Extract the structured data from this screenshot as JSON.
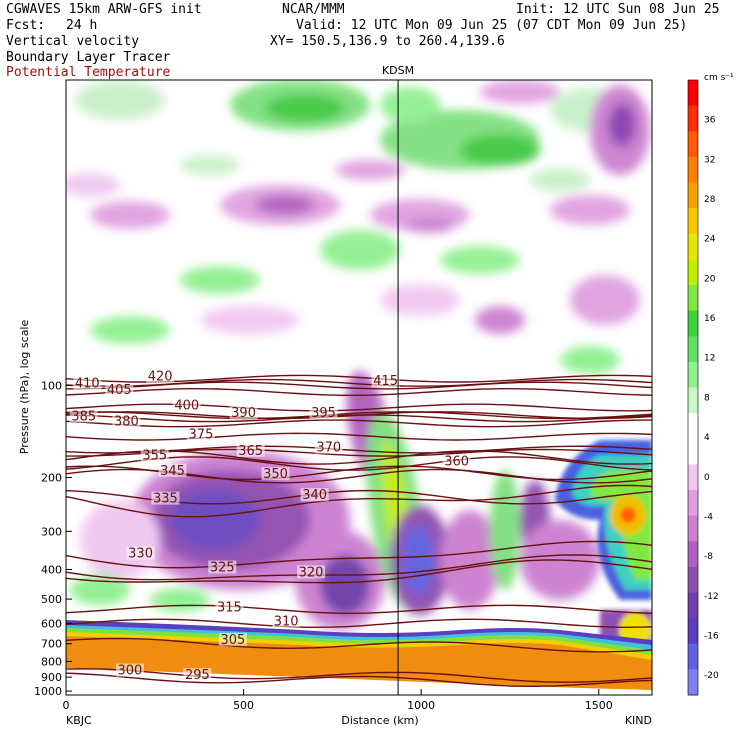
{
  "header": {
    "model": "CGWAVES 15km ARW-GFS init",
    "org": "NCAR/MMM",
    "init": "Init: 12 UTC Sun 08 Jun 25",
    "fcst_label": "Fcst:",
    "fcst_value": "24 h",
    "valid": "Valid: 12 UTC Mon 09 Jun 25 (07 CDT Mon 09 Jun 25)",
    "field1": "Vertical velocity",
    "field2": "Boundary Layer Tracer",
    "field3": "Potential Temperature",
    "xy": "XY= 150.5,136.9 to 260.4,139.6"
  },
  "colors": {
    "theta": "#6a1010",
    "field3_text": "#a01010",
    "terrain_orange": "#f08c10"
  },
  "chart_data": {
    "type": "heatmap",
    "xlabel": "Distance (km)",
    "ylabel": "Pressure (hPa), log scale",
    "x_range": [
      0,
      1650
    ],
    "x_ticks": [
      0,
      500,
      1000,
      1500
    ],
    "y_scale": "log",
    "y_range": [
      1030,
      10
    ],
    "y_ticks": [
      100,
      200,
      300,
      400,
      500,
      600,
      700,
      800,
      900,
      1000
    ],
    "left_station": "KBJC",
    "right_station": "KIND",
    "mid_station": "KDSM",
    "mid_station_x_km": 935,
    "colorbar": {
      "units": "cm s⁻¹",
      "labels": [
        36,
        32,
        28,
        24,
        20,
        16,
        12,
        8,
        4,
        0,
        -4,
        -8,
        -12,
        -16,
        -20
      ],
      "colors": [
        "#ff0000",
        "#ff2e00",
        "#ff5a00",
        "#ff8000",
        "#f5a000",
        "#f5c800",
        "#e6e600",
        "#c0f000",
        "#80e840",
        "#40d040",
        "#60e060",
        "#90f090",
        "#c8f8c8",
        "#ffffff",
        "#ffffff",
        "#f0c8f0",
        "#e0a0e0",
        "#cc80d0",
        "#b060c0",
        "#9050b0",
        "#7040a8",
        "#5a40c0",
        "#6060e0",
        "#8080f0"
      ]
    },
    "theta_contours": [
      {
        "value": 420,
        "label_x": 265,
        "label_p": 95
      },
      {
        "value": 415,
        "label_x": 900,
        "label_p": 98
      },
      {
        "value": 410,
        "label_x": 60,
        "label_p": 100
      },
      {
        "value": 405,
        "label_x": 150,
        "label_p": 105
      },
      {
        "value": 400,
        "label_x": 340,
        "label_p": 118
      },
      {
        "value": 395,
        "label_x": 725,
        "label_p": 125
      },
      {
        "value": 390,
        "label_x": 500,
        "label_p": 125
      },
      {
        "value": 385,
        "label_x": 50,
        "label_p": 128
      },
      {
        "value": 380,
        "label_x": 170,
        "label_p": 133
      },
      {
        "value": 375,
        "label_x": 380,
        "label_p": 147
      },
      {
        "value": 370,
        "label_x": 740,
        "label_p": 162
      },
      {
        "value": 365,
        "label_x": 520,
        "label_p": 166
      },
      {
        "value": 360,
        "label_x": 1100,
        "label_p": 180
      },
      {
        "value": 355,
        "label_x": 250,
        "label_p": 172
      },
      {
        "value": 350,
        "label_x": 590,
        "label_p": 198
      },
      {
        "value": 345,
        "label_x": 300,
        "label_p": 193
      },
      {
        "value": 340,
        "label_x": 700,
        "label_p": 232
      },
      {
        "value": 335,
        "label_x": 280,
        "label_p": 238
      },
      {
        "value": 330,
        "label_x": 210,
        "label_p": 360
      },
      {
        "value": 325,
        "label_x": 440,
        "label_p": 400
      },
      {
        "value": 320,
        "label_x": 690,
        "label_p": 415
      },
      {
        "value": 315,
        "label_x": 460,
        "label_p": 540
      },
      {
        "value": 310,
        "label_x": 620,
        "label_p": 600
      },
      {
        "value": 305,
        "label_x": 470,
        "label_p": 690
      },
      {
        "value": 300,
        "label_x": 180,
        "label_p": 870
      },
      {
        "value": 295,
        "label_x": 370,
        "label_p": 900
      }
    ],
    "isotherm_label_list": [
      "420",
      "415",
      "410",
      "405",
      "400",
      "395",
      "390",
      "385",
      "380",
      "375",
      "370",
      "365",
      "360",
      "355",
      "350",
      "345",
      "340",
      "335",
      "330",
      "325",
      "320",
      "315",
      "310",
      "305",
      "300",
      "295"
    ]
  }
}
